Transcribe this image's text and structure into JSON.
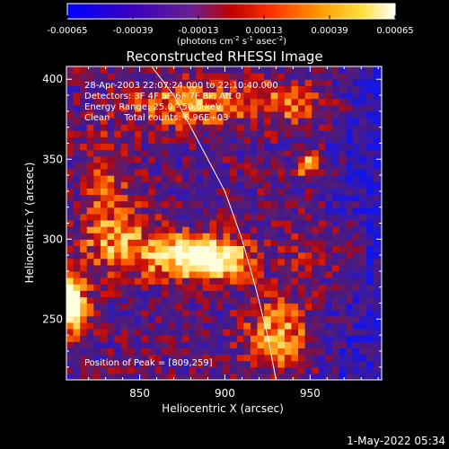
{
  "chart_data": {
    "type": "heatmap",
    "title": "Reconstructed RHESSI Image",
    "xlabel": "Heliocentric X (arcsec)",
    "ylabel": "Heliocentric Y (arcsec)",
    "xlim": [
      807,
      992
    ],
    "ylim": [
      212,
      408
    ],
    "x_ticks": [
      850,
      900,
      950
    ],
    "y_ticks": [
      250,
      300,
      350,
      400
    ],
    "colorbar": {
      "ticks": [
        "-0.00065",
        "-0.00039",
        "-0.00013",
        "0.00013",
        "0.00039",
        "0.00065"
      ],
      "tick_values": [
        -0.00065,
        -0.00039,
        -0.00013,
        0.00013,
        0.00039,
        0.00065
      ],
      "range": [
        -0.00065,
        0.00065
      ],
      "unit_prefix": "(photons cm",
      "unit_exp1": "-2",
      "unit_s": " s",
      "unit_exp2": "-1",
      "unit_asec": " asec",
      "unit_exp3": "-2",
      "unit_suffix": ")",
      "colormap": [
        "#0000ff",
        "#4b0082",
        "#ff0000",
        "#ff8c00",
        "#ffff00",
        "#ffffff"
      ]
    },
    "info_lines": [
      "28-Apr-2003 22:07:24.000 to 22:10:40.000",
      "Detectors: 3F 4F 5F 6F 7F 8F, Att 0",
      "Energy Range: 25.0 - 50.0 keV",
      "Clean     Total counts: 6.96E+03"
    ],
    "peak_label": "Position of Peak = [809,259]",
    "peak": {
      "x": 809,
      "y": 259
    },
    "limb_curve": [
      [
        857,
        408
      ],
      [
        870,
        390
      ],
      [
        885,
        360
      ],
      [
        900,
        330
      ],
      [
        910,
        300
      ],
      [
        918,
        270
      ],
      [
        925,
        240
      ],
      [
        930,
        212
      ]
    ],
    "grid": false,
    "legend": "none"
  },
  "footer": {
    "timestamp": "1-May-2022 05:34"
  }
}
